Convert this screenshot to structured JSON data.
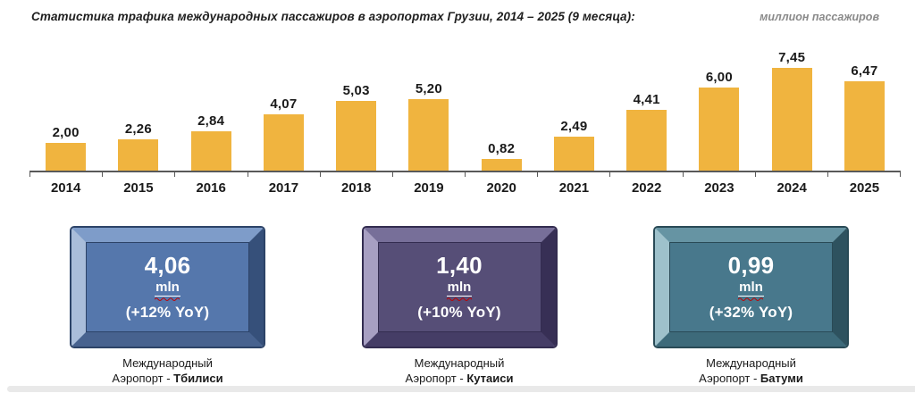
{
  "header": {
    "title": "Статистика трафика международных пассажиров в аэропортах Грузии, 2014 – 2025 (9 месяца):",
    "units_label": "миллион пассажиров"
  },
  "chart_data": {
    "type": "bar",
    "title": "Статистика трафика международных пассажиров в аэропортах Грузии, 2014 – 2025 (9 месяца)",
    "ylabel": "миллион пассажиров",
    "xlabel": "",
    "categories": [
      "2014",
      "2015",
      "2016",
      "2017",
      "2018",
      "2019",
      "2020",
      "2021",
      "2022",
      "2023",
      "2024",
      "2025"
    ],
    "values": [
      2.0,
      2.26,
      2.84,
      4.07,
      5.03,
      5.2,
      0.82,
      2.49,
      4.41,
      6.0,
      7.45,
      6.47
    ],
    "value_labels": [
      "2,00",
      "2,26",
      "2,84",
      "4,07",
      "5,03",
      "5,20",
      "0,82",
      "2,49",
      "4,41",
      "6,00",
      "7,45",
      "6,47"
    ],
    "ylim": [
      0,
      7.45
    ],
    "grid": false,
    "legend": false,
    "bar_color": "#F0B43F",
    "axis_color": "#595959"
  },
  "airport_cards": [
    {
      "value": "4,06",
      "unit": "mln",
      "yoy": "(+12% YoY)",
      "caption_line1": "Международный",
      "caption_line2_prefix": "Аэропорт - ",
      "caption_city": "Тбилиси",
      "colors": {
        "face": "#5577AC",
        "bevel_left": "#A9BDDA",
        "bevel_top": "#7E9CC9",
        "bevel_right": "#36507A",
        "bevel_bottom": "#47628F",
        "outline": "#2C4368"
      }
    },
    {
      "value": "1,40",
      "unit": "mln",
      "yoy": "(+10% YoY)",
      "caption_line1": "Международный",
      "caption_line2_prefix": "Аэропорт - ",
      "caption_city": "Кутаиси",
      "colors": {
        "face": "#564E77",
        "bevel_left": "#A79FC2",
        "bevel_top": "#776F99",
        "bevel_right": "#372F55",
        "bevel_bottom": "#453D66",
        "outline": "#332C50"
      }
    },
    {
      "value": "0,99",
      "unit": "mln",
      "yoy": "(+32% YoY)",
      "caption_line1": "Международный",
      "caption_line2_prefix": "Аэропорт - ",
      "caption_city": "Батуми",
      "colors": {
        "face": "#48788C",
        "bevel_left": "#9EC1CB",
        "bevel_top": "#6694A3",
        "bevel_right": "#2E525F",
        "bevel_bottom": "#3D6A7A",
        "outline": "#294A56"
      }
    }
  ],
  "misc": {
    "squiggle_color": "#C00000"
  }
}
